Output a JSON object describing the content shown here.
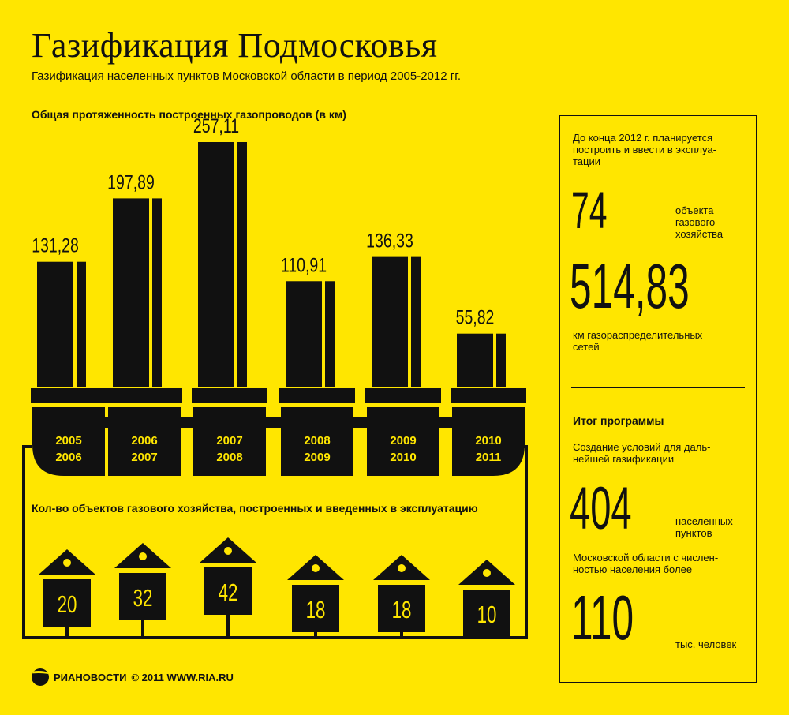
{
  "header": {
    "title": "Газификация Подмосковья",
    "subtitle": "Газификация населенных пунктов Московской области в период 2005-2012 гг."
  },
  "chart_data": {
    "type": "bar",
    "title": "Общая протяженность построенных газопроводов (в км)",
    "categories": [
      [
        "2005",
        "2006"
      ],
      [
        "2006",
        "2007"
      ],
      [
        "2007",
        "2008"
      ],
      [
        "2008",
        "2009"
      ],
      [
        "2009",
        "2010"
      ],
      [
        "2010",
        "2011"
      ]
    ],
    "values": [
      131.28,
      197.89,
      257.11,
      110.91,
      136.33,
      55.82
    ],
    "value_labels": [
      "131,28",
      "197,89",
      "257,11",
      "110,91",
      "136,33",
      "55,82"
    ],
    "objects_title": "Кол-во объектов газового хозяйства, построенных и введенных в эксплуатацию",
    "objects": [
      20,
      32,
      42,
      18,
      18,
      10
    ]
  },
  "side_panel": {
    "plan_text": [
      "До конца 2012 г. планируется",
      "построить и ввести в эксплуа-",
      "тации"
    ],
    "objects_count": "74",
    "objects_label": [
      "объекта",
      "газового",
      "хозяйства"
    ],
    "network_km": "514,83",
    "network_label": [
      "км газораспределительных",
      "сетей"
    ],
    "result_title": "Итог программы",
    "result_text": [
      "Создание условий для даль-",
      "нейшей газификации"
    ],
    "settlements_count": "404",
    "settlements_label": [
      "населенных",
      "пунктов"
    ],
    "population_text": [
      "Московской области с числен-",
      "ностью населения более"
    ],
    "population_count": "110",
    "population_label": "тыс. человек"
  },
  "footer": {
    "brand": "РИАНОВОСТИ",
    "copyright": "© 2011 WWW.RIA.RU"
  },
  "colors": {
    "background": "#FFE600",
    "ink": "#111111"
  }
}
